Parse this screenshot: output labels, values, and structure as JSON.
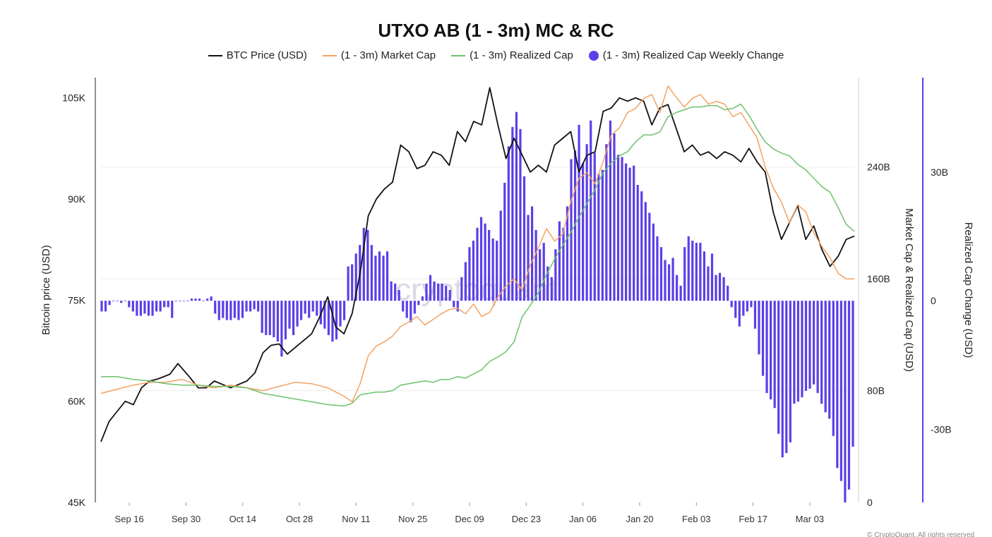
{
  "chart_data": {
    "type": "line",
    "title": "UTXO AB (1 - 3m) MC & RC",
    "watermark": "cryptoquant",
    "copyright": "© CryptoQuant. All rights reserved",
    "legend_position": "top-center",
    "grid": true,
    "colors": {
      "btc": "#111111",
      "market_cap": "#f4a261",
      "realized_cap": "#6cc26a",
      "weekly_change": "#5b3fe8"
    },
    "axes": {
      "left": {
        "label": "Bitcoin price (USD)",
        "ticks": [
          "105K",
          "90K",
          "75K",
          "60K",
          "45K"
        ],
        "tick_values": [
          105000,
          90000,
          75000,
          60000,
          45000
        ],
        "range": [
          45000,
          108000
        ]
      },
      "right1": {
        "label": "Market Cap & Realized Cap (USD)",
        "ticks": [
          "240B",
          "160B",
          "80B",
          "0"
        ],
        "tick_values": [
          240,
          160,
          80,
          0
        ],
        "range": [
          0,
          304
        ]
      },
      "right2": {
        "label": "Realized Cap Change (USD)",
        "ticks": [
          "30B",
          "0",
          "-30B"
        ],
        "tick_values": [
          30,
          0,
          -30
        ],
        "range": [
          -47,
          52
        ]
      },
      "x_ticks": [
        "Sep 16",
        "Sep 30",
        "Oct 14",
        "Oct 28",
        "Nov 11",
        "Nov 25",
        "Dec 09",
        "Dec 23",
        "Jan 06",
        "Jan 20",
        "Feb 03",
        "Feb 17",
        "Mar 03"
      ]
    },
    "x_day_range": [
      0,
      186
    ],
    "x_tick_days": [
      7,
      21,
      35,
      49,
      63,
      77,
      91,
      105,
      119,
      133,
      147,
      161,
      175
    ],
    "series": [
      {
        "name": "BTC Price (USD)",
        "axis": "left",
        "days": [
          0,
          2,
          4,
          6,
          8,
          10,
          12,
          14,
          17,
          19,
          22,
          24,
          26,
          28,
          30,
          32,
          34,
          36,
          38,
          40,
          42,
          44,
          46,
          48,
          50,
          52,
          54,
          56,
          58,
          60,
          62,
          64,
          66,
          68,
          70,
          72,
          74,
          76,
          78,
          80,
          82,
          84,
          86,
          88,
          90,
          92,
          94,
          96,
          98,
          100,
          102,
          104,
          106,
          108,
          110,
          112,
          114,
          116,
          118,
          120,
          122,
          124,
          126,
          128,
          130,
          132,
          134,
          136,
          138,
          140,
          142,
          144,
          146,
          148,
          150,
          152,
          154,
          156,
          158,
          160,
          162,
          164,
          166,
          168,
          170,
          172,
          174,
          176,
          178,
          180,
          182,
          184,
          186
        ],
        "values": [
          54000,
          57000,
          58500,
          60000,
          59500,
          62000,
          63000,
          63300,
          64000,
          65600,
          63500,
          62000,
          62000,
          63000,
          62500,
          62000,
          62500,
          63000,
          64200,
          67200,
          68300,
          68500,
          67000,
          68000,
          69000,
          70000,
          72500,
          75500,
          71000,
          70000,
          73000,
          79000,
          87500,
          90000,
          91500,
          92500,
          98000,
          97000,
          94500,
          95000,
          97000,
          96500,
          95000,
          100000,
          98500,
          101500,
          101000,
          106500,
          101000,
          96000,
          99000,
          96500,
          94000,
          95000,
          94000,
          98000,
          99000,
          100000,
          94000,
          96500,
          97000,
          103000,
          103500,
          105000,
          104500,
          105000,
          104500,
          101000,
          103500,
          104000,
          100500,
          97000,
          98000,
          96500,
          97000,
          96000,
          97000,
          96500,
          95500,
          97500,
          95500,
          94000,
          88000,
          84000,
          86500,
          89000,
          84000,
          86000,
          82500,
          80000,
          81500,
          84000,
          84500
        ]
      },
      {
        "name": "(1 - 3m) Market Cap",
        "axis": "right1",
        "days": [
          0,
          4,
          8,
          12,
          16,
          20,
          24,
          28,
          32,
          36,
          40,
          44,
          48,
          52,
          56,
          60,
          62,
          64,
          66,
          68,
          70,
          72,
          74,
          76,
          78,
          80,
          82,
          84,
          86,
          88,
          90,
          92,
          94,
          96,
          98,
          100,
          102,
          104,
          106,
          108,
          110,
          112,
          114,
          116,
          118,
          120,
          122,
          124,
          126,
          128,
          130,
          132,
          134,
          136,
          138,
          140,
          142,
          144,
          146,
          148,
          150,
          152,
          154,
          156,
          158,
          160,
          162,
          164,
          166,
          168,
          170,
          172,
          174,
          176,
          178,
          180,
          182,
          184,
          186
        ],
        "values": [
          78,
          81,
          84,
          86,
          86,
          88,
          84,
          82,
          84,
          82,
          80,
          83,
          86,
          85,
          82,
          76,
          72,
          85,
          105,
          112,
          115,
          119,
          126,
          129,
          133,
          127,
          131,
          135,
          138,
          139,
          135,
          142,
          133,
          136,
          147,
          155,
          160,
          152,
          170,
          182,
          196,
          187,
          192,
          215,
          232,
          236,
          228,
          244,
          263,
          268,
          279,
          282,
          289,
          292,
          279,
          298,
          290,
          283,
          289,
          292,
          285,
          287,
          285,
          276,
          279,
          270,
          261,
          240,
          225,
          215,
          200,
          213,
          208,
          193,
          183,
          175,
          164,
          160,
          160
        ]
      },
      {
        "name": "(1 - 3m) Realized Cap",
        "axis": "right1",
        "days": [
          0,
          4,
          8,
          12,
          16,
          20,
          24,
          28,
          32,
          36,
          40,
          44,
          48,
          52,
          56,
          60,
          62,
          64,
          66,
          68,
          70,
          72,
          74,
          76,
          78,
          80,
          82,
          84,
          86,
          88,
          90,
          92,
          94,
          96,
          98,
          100,
          102,
          104,
          106,
          108,
          110,
          112,
          114,
          116,
          118,
          120,
          122,
          124,
          126,
          128,
          130,
          132,
          134,
          136,
          138,
          140,
          142,
          144,
          146,
          148,
          150,
          152,
          154,
          156,
          158,
          160,
          162,
          164,
          166,
          168,
          170,
          172,
          174,
          176,
          178,
          180,
          182,
          184,
          186
        ],
        "values": [
          90,
          90,
          88,
          87,
          85,
          84,
          84,
          83,
          83,
          82,
          78,
          76,
          74,
          72,
          70,
          69,
          71,
          77,
          78,
          79,
          79,
          80,
          84,
          85,
          86,
          87,
          86,
          88,
          88,
          90,
          89,
          92,
          95,
          101,
          104,
          108,
          115,
          133,
          141,
          150,
          163,
          174,
          184,
          193,
          204,
          214,
          224,
          236,
          243,
          248,
          251,
          258,
          263,
          263,
          265,
          276,
          279,
          281,
          283,
          283,
          284,
          284,
          281,
          282,
          285,
          277,
          267,
          258,
          253,
          250,
          248,
          242,
          238,
          232,
          226,
          222,
          211,
          199,
          194
        ]
      },
      {
        "name": "(1 - 3m) Realized Cap Weekly Change",
        "axis": "right2",
        "type": "bar",
        "values": [
          -2.5,
          -2.5,
          -1.0,
          0,
          0,
          -0.5,
          0,
          -1.5,
          -2.5,
          -3.5,
          -3.5,
          -3.0,
          -3.5,
          -3.5,
          -2.5,
          -2.5,
          -1.5,
          -1.5,
          -4.0,
          0,
          0,
          0,
          0,
          0.5,
          0.5,
          0.5,
          0,
          0.5,
          1.0,
          -3.0,
          -4.5,
          -4.0,
          -4.5,
          -4.5,
          -4.0,
          -4.5,
          -4.0,
          -2.5,
          -2.5,
          -2.0,
          -2.5,
          -7.5,
          -8.0,
          -8.0,
          -8.5,
          -9.5,
          -13.0,
          -9.0,
          -6.5,
          -8.0,
          -6.0,
          -4.5,
          -3.0,
          -4.0,
          -2.5,
          -3.5,
          -5.5,
          -6.5,
          -8.0,
          -9.5,
          -9.0,
          -6.0,
          -4.5,
          8.0,
          8.5,
          11.0,
          13.0,
          17.0,
          16.5,
          13.0,
          10.5,
          11.5,
          10.5,
          11.5,
          4.5,
          4.0,
          2.5,
          -2.5,
          -4.0,
          -5.0,
          -3.0,
          -1.0,
          1.0,
          4.0,
          6.0,
          4.5,
          4.0,
          4.0,
          3.5,
          2.5,
          -1.5,
          -2.5,
          5.5,
          9.0,
          12.5,
          14.0,
          17.0,
          19.5,
          18.0,
          16.5,
          14.5,
          14.0,
          21.0,
          27.5,
          36.0,
          40.5,
          44.0,
          40.0,
          29.0,
          20.0,
          22.0,
          16.5,
          12.0,
          13.5,
          8.0,
          5.5,
          12.0,
          18.5,
          17.0,
          22.0,
          33.0,
          35.0,
          41.0,
          32.0,
          36.5,
          42.0,
          34.5,
          29.5,
          30.5,
          36.5,
          42.0,
          39.0,
          34.0,
          33.5,
          32.0,
          31.0,
          31.5,
          27.0,
          25.5,
          23.0,
          20.5,
          18.0,
          15.0,
          12.5,
          9.5,
          8.5,
          10.0,
          6.0,
          3.5,
          12.5,
          15.0,
          14.0,
          13.5,
          13.5,
          11.5,
          8.0,
          11.0,
          6.0,
          6.5,
          5.5,
          3.5,
          -1.5,
          -4.0,
          -6.0,
          -3.5,
          -2.5,
          -1.5,
          -6.5,
          -12.5,
          -17.5,
          -21.5,
          -23.0,
          -25.0,
          -31.0,
          -36.5,
          -35.5,
          -33.0,
          -24.0,
          -23.5,
          -22.5,
          -21.0,
          -20.5,
          -19.5,
          -21.5,
          -24.0,
          -26.0,
          -27.5,
          -31.5,
          -39.0,
          -42.0,
          -47.0,
          -44.0,
          -34.0
        ]
      }
    ]
  }
}
